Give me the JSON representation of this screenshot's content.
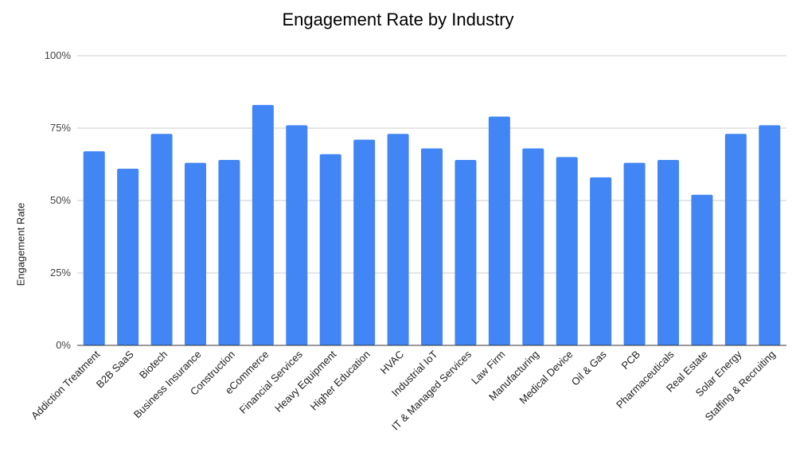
{
  "chart_data": {
    "type": "bar",
    "title": "Engagement Rate by Industry",
    "xlabel": "",
    "ylabel": "Engagement Rate",
    "ylim": [
      0,
      100
    ],
    "yticks": [
      "0%",
      "25%",
      "50%",
      "75%",
      "100%"
    ],
    "grid": true,
    "bar_color": "#4285F4",
    "categories": [
      "Addiction Treatment",
      "B2B SaaS",
      "Biotech",
      "Business Insurance",
      "Construction",
      "eCommerce",
      "Financial Services",
      "Heavy Equipment",
      "Higher Education",
      "HVAC",
      "Industrial IoT",
      "IT & Managed Services",
      "Law Firm",
      "Manufacturing",
      "Medical Device",
      "Oil & Gas",
      "PCB",
      "Pharmaceuticals",
      "Real Estate",
      "Solar Energy",
      "Staffing & Recruiting"
    ],
    "values": [
      67,
      61,
      73,
      63,
      64,
      83,
      76,
      66,
      71,
      73,
      68,
      64,
      79,
      68,
      65,
      58,
      63,
      64,
      52,
      73,
      76
    ]
  }
}
